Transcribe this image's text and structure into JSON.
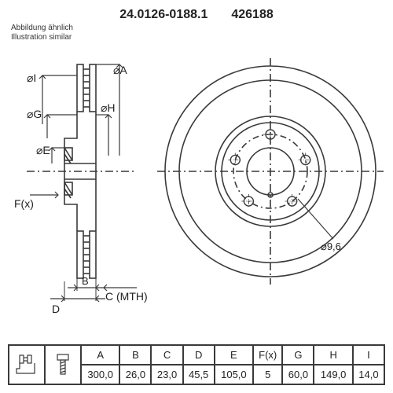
{
  "header": {
    "part_number": "24.0126-0188.1",
    "short_code": "426188"
  },
  "note": {
    "line1": "Abbildung ähnlich",
    "line2": "Illustration similar"
  },
  "diagram": {
    "side_view": {
      "labels": {
        "I": "⌀I",
        "G": "⌀G",
        "E": "⌀E",
        "H": "⌀H",
        "A": "⌀A",
        "F": "F(x)",
        "D": "D",
        "B": "B",
        "C": "C (MTH)"
      }
    },
    "front_view": {
      "hole_label": "⌀9,6"
    },
    "bolt_count": 5,
    "stroke": "#3a3a3a",
    "stroke_width": 1.6
  },
  "table": {
    "columns": [
      "A",
      "B",
      "C",
      "D",
      "E",
      "F(x)",
      "G",
      "H",
      "I"
    ],
    "values": [
      "300,0",
      "26,0",
      "23,0",
      "45,5",
      "105,0",
      "5",
      "60,0",
      "149,0",
      "14,0"
    ],
    "border_color": "#3a3a3a"
  }
}
